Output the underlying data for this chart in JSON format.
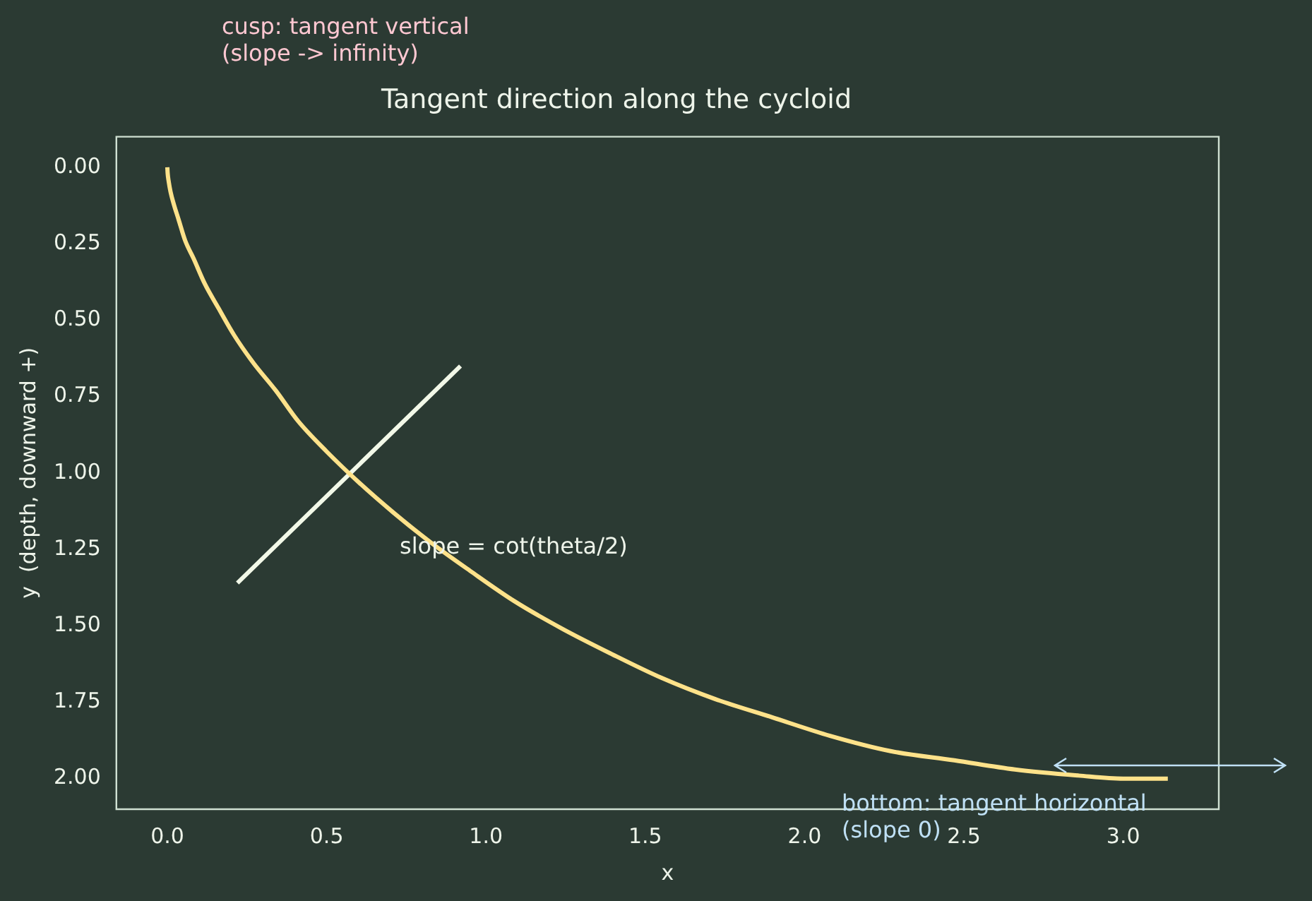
{
  "chart_data": {
    "type": "line",
    "title": "Tangent direction along the cycloid",
    "xlabel": "x",
    "ylabel": "y  (depth, downward +)",
    "series": [
      {
        "color": "#ffe28a",
        "x": [
          0,
          0.0002,
          0.001,
          0.004,
          0.01,
          0.02,
          0.035,
          0.056,
          0.083,
          0.117,
          0.16,
          0.21,
          0.27,
          0.34,
          0.41,
          0.5,
          0.6,
          0.71,
          0.83,
          0.95,
          1.09,
          1.24,
          1.39,
          1.55,
          1.72,
          1.9,
          2.08,
          2.27,
          2.47,
          2.66,
          2.86,
          3.0,
          3.14
        ],
        "values": [
          0,
          0.005,
          0.02,
          0.045,
          0.08,
          0.12,
          0.17,
          0.24,
          0.3,
          0.38,
          0.46,
          0.55,
          0.64,
          0.73,
          0.83,
          0.93,
          1.03,
          1.13,
          1.23,
          1.32,
          1.42,
          1.51,
          1.59,
          1.67,
          1.74,
          1.8,
          1.86,
          1.91,
          1.94,
          1.97,
          1.99,
          2.0,
          2.0
        ]
      },
      {
        "color": "#f2f8e8",
        "x": [
          0.22,
          0.92
        ],
        "values": [
          1.36,
          0.65
        ]
      }
    ],
    "xlim": [
      -0.16,
      3.3
    ],
    "ylim": [
      2.1,
      -0.1
    ],
    "xticks": [
      {
        "value": 0,
        "label": "0.0"
      },
      {
        "value": 0.5,
        "label": "0.5"
      },
      {
        "value": 1,
        "label": "1.0"
      },
      {
        "value": 1.5,
        "label": "1.5"
      },
      {
        "value": 2,
        "label": "2.0"
      },
      {
        "value": 2.5,
        "label": "2.5"
      },
      {
        "value": 3,
        "label": "3.0"
      }
    ],
    "yticks": [
      {
        "value": 0,
        "label": "0.00"
      },
      {
        "value": 0.25,
        "label": "0.25"
      },
      {
        "value": 0.5,
        "label": "0.50"
      },
      {
        "value": 0.75,
        "label": "0.75"
      },
      {
        "value": 1,
        "label": "1.00"
      },
      {
        "value": 1.25,
        "label": "1.25"
      },
      {
        "value": 1.5,
        "label": "1.50"
      },
      {
        "value": 1.75,
        "label": "1.75"
      },
      {
        "value": 2,
        "label": "2.00"
      }
    ],
    "annotations": [
      "cusp: tangent vertical\n(slope -> infinity)",
      "slope = cot(theta/2)",
      "bottom: tangent horizontal\n(slope 0)"
    ],
    "grid": false,
    "legend": false,
    "marker": "none",
    "line_style": "solid"
  }
}
